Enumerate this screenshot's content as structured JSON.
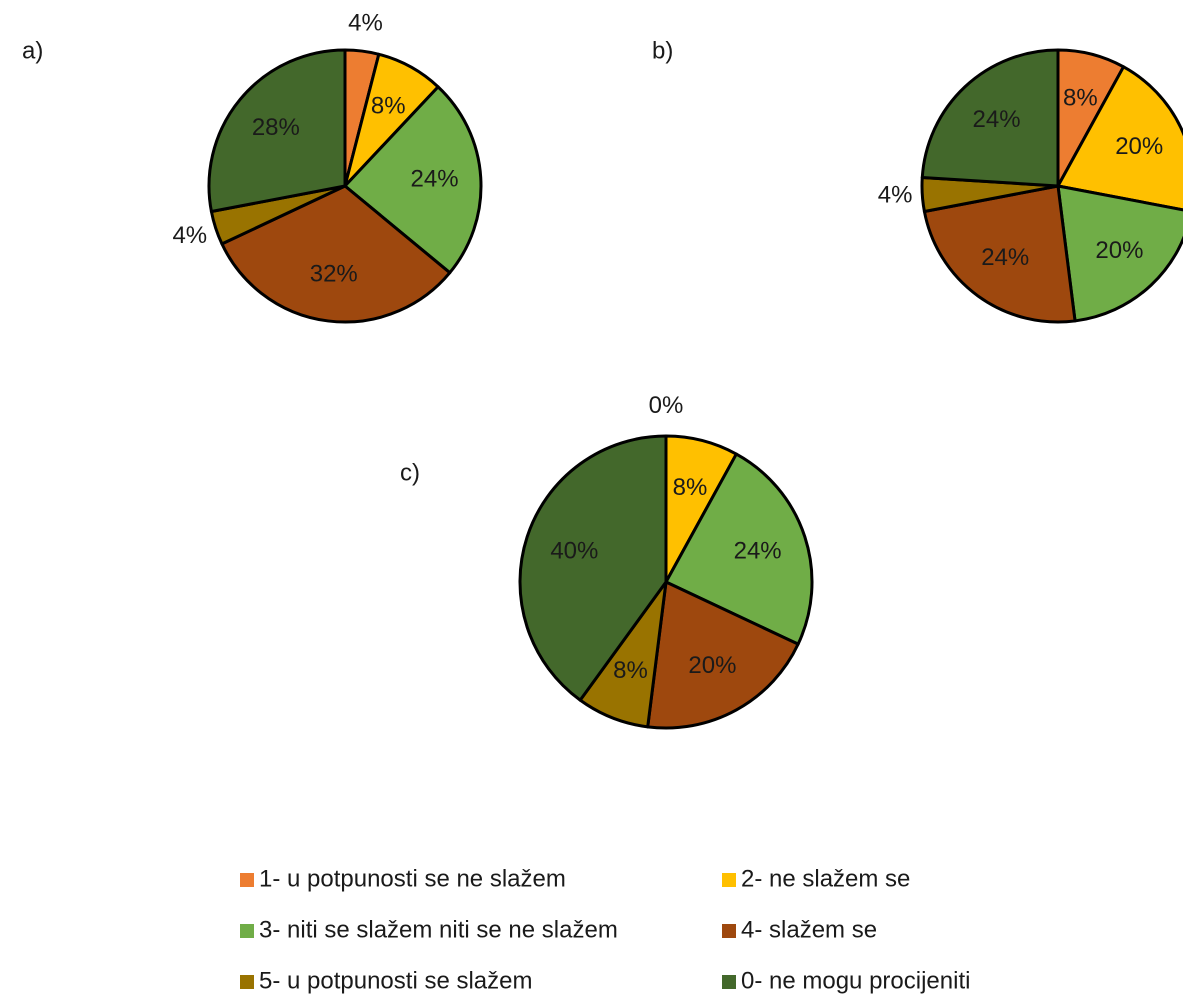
{
  "chart_data": [
    {
      "type": "pie",
      "title": "a)",
      "categories": [
        "1- u potpunosti se ne slažem",
        "2- ne slažem se",
        "3- niti se slažem niti se ne slažem",
        "4- slažem se",
        "5- u potpunosti se slažem",
        "0- ne mogu procijeniti"
      ],
      "colors": [
        "#ed7d31",
        "#ffc000",
        "#70ad47",
        "#9e480e",
        "#997300",
        "#43682b"
      ],
      "values": [
        4,
        8,
        24,
        32,
        4,
        28
      ],
      "value_labels": [
        "4%",
        "8%",
        "24%",
        "32%",
        "4%",
        "28%"
      ]
    },
    {
      "type": "pie",
      "title": "b)",
      "categories": [
        "1- u potpunosti se ne slažem",
        "2- ne slažem se",
        "3- niti se slažem niti se ne slažem",
        "4- slažem se",
        "5- u potpunosti se slažem",
        "0- ne mogu procijeniti"
      ],
      "colors": [
        "#ed7d31",
        "#ffc000",
        "#70ad47",
        "#9e480e",
        "#997300",
        "#43682b"
      ],
      "values": [
        8,
        20,
        20,
        24,
        4,
        24
      ],
      "value_labels": [
        "8%",
        "20%",
        "20%",
        "24%",
        "4%",
        "24%"
      ]
    },
    {
      "type": "pie",
      "title": "c)",
      "categories": [
        "1- u potpunosti se ne slažem",
        "2- ne slažem se",
        "3- niti se slažem niti se ne slažem",
        "4- slažem se",
        "5- u potpunosti se slažem",
        "0- ne mogu procijeniti"
      ],
      "colors": [
        "#ed7d31",
        "#ffc000",
        "#70ad47",
        "#9e480e",
        "#997300",
        "#43682b"
      ],
      "values": [
        0,
        8,
        24,
        20,
        8,
        40
      ],
      "value_labels": [
        "0%",
        "8%",
        "24%",
        "20%",
        "8%",
        "40%"
      ]
    }
  ]
}
